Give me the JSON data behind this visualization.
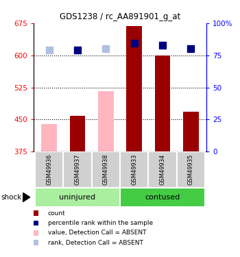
{
  "title": "GDS1238 / rc_AA891901_g_at",
  "samples": [
    "GSM49936",
    "GSM49937",
    "GSM49938",
    "GSM49933",
    "GSM49934",
    "GSM49935"
  ],
  "bar_values": [
    440,
    458,
    517,
    668,
    600,
    468
  ],
  "bar_absent": [
    true,
    false,
    true,
    false,
    false,
    false
  ],
  "rank_values": [
    612,
    613,
    616,
    628,
    623,
    615
  ],
  "rank_absent": [
    true,
    false,
    true,
    false,
    false,
    false
  ],
  "bar_color_present": "#9B0000",
  "bar_color_absent": "#FFB6C1",
  "rank_color_present": "#000080",
  "rank_color_absent": "#B0C0E0",
  "ylim_left": [
    375,
    675
  ],
  "ylim_right": [
    0,
    100
  ],
  "yticks_left": [
    375,
    450,
    525,
    600,
    675
  ],
  "yticks_right": [
    0,
    25,
    50,
    75,
    100
  ],
  "ytick_labels_right": [
    "0",
    "25",
    "50",
    "75",
    "100%"
  ],
  "grid_lines": [
    450,
    525,
    600
  ],
  "base_value": 375,
  "group_spans": [
    [
      0,
      2,
      "uninjured",
      "#AAEEA0"
    ],
    [
      3,
      5,
      "contused",
      "#44CC44"
    ]
  ],
  "shock_label": "shock",
  "legend_items": [
    {
      "color": "#9B0000",
      "label": "count"
    },
    {
      "color": "#000080",
      "label": "percentile rank within the sample"
    },
    {
      "color": "#FFB6C1",
      "label": "value, Detection Call = ABSENT"
    },
    {
      "color": "#B0C0E0",
      "label": "rank, Detection Call = ABSENT"
    }
  ]
}
